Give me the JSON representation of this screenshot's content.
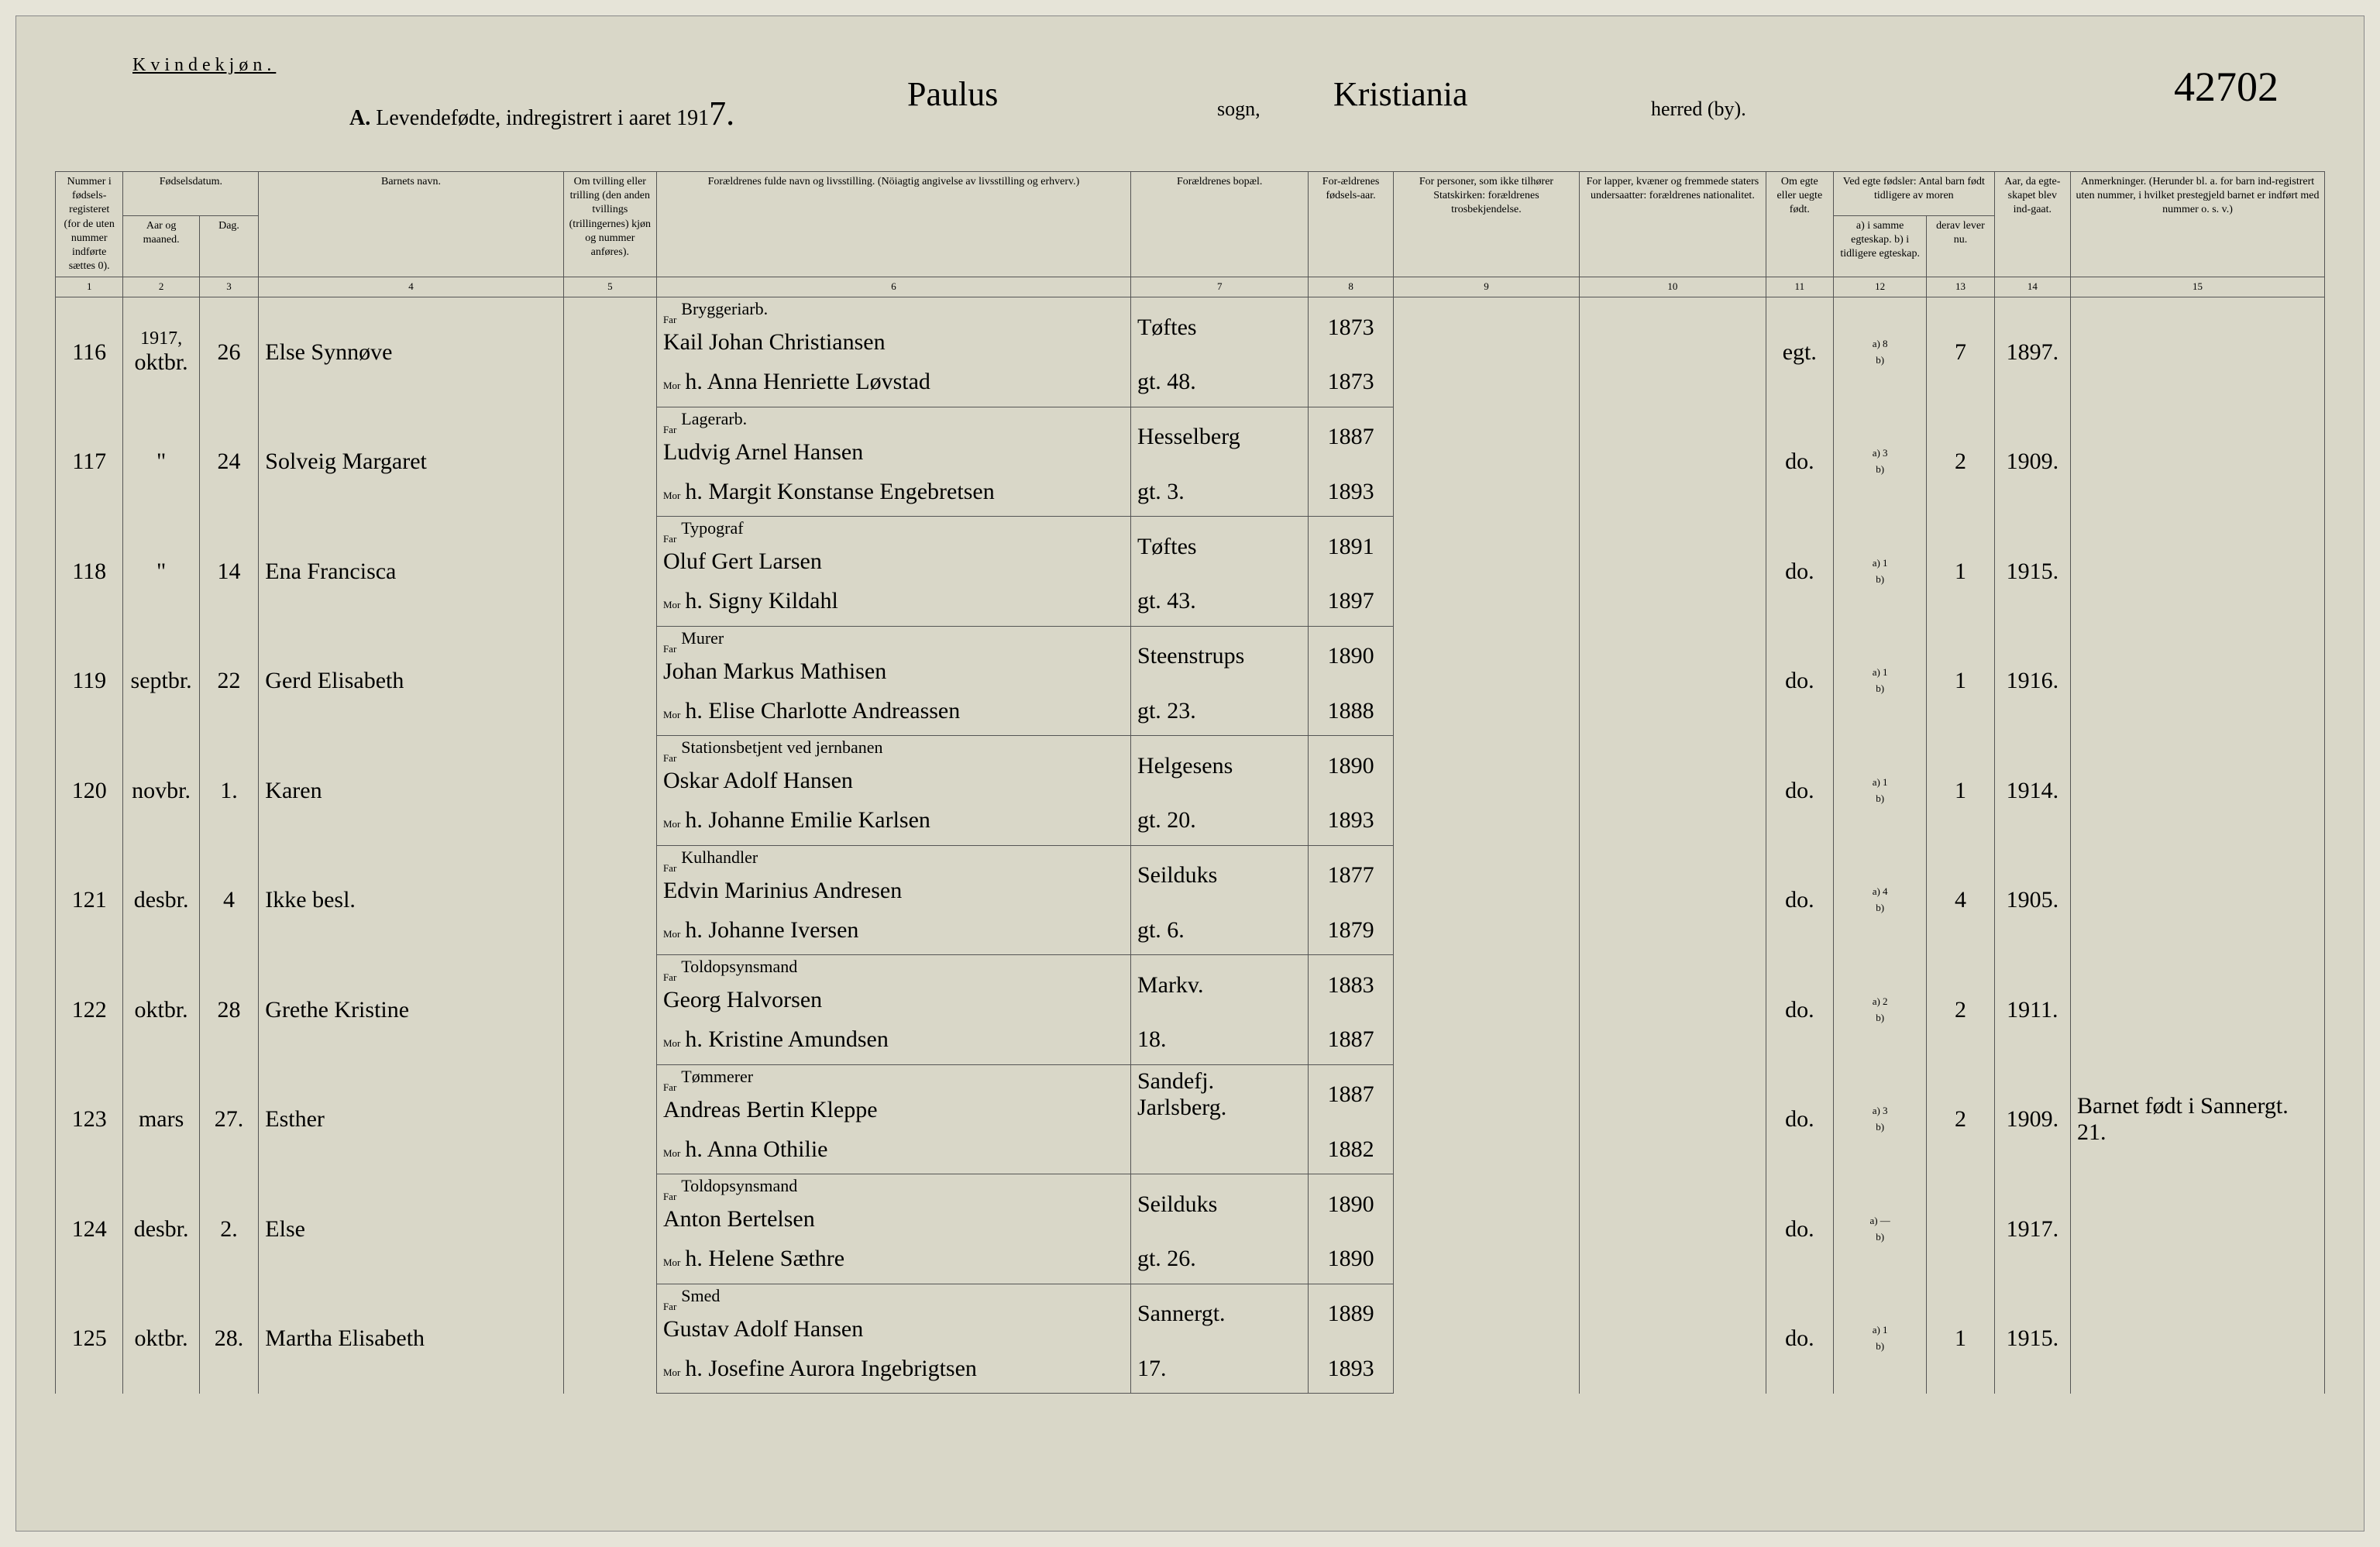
{
  "header": {
    "gender": "Kvindekjøn.",
    "title_prefix": "A.",
    "title_main": "Levendefødte, indregistrert i aaret 191",
    "title_year_digit": "7.",
    "parish": "Paulus",
    "sogn_label": "sogn,",
    "district": "Kristiania",
    "herred_label": "herred (by).",
    "page_number": "42702"
  },
  "columns": {
    "c1": "Nummer i fødsels-registeret (for de uten nummer indførte sættes 0).",
    "c2_group": "Fødselsdatum.",
    "c2": "Aar og maaned.",
    "c3": "Dag.",
    "c4": "Barnets navn.",
    "c5": "Om tvilling eller trilling (den anden tvillings (trillingernes) kjøn og nummer anføres).",
    "c6": "Forældrenes fulde navn og livsstilling. (Nöiagtig angivelse av livsstilling og erhverv.)",
    "c7": "Forældrenes bopæl.",
    "c8": "For-ældrenes fødsels-aar.",
    "c9": "For personer, som ikke tilhører Statskirken: forældrenes trosbekjendelse.",
    "c10": "For lapper, kvæner og fremmede staters undersaatter: forældrenes nationalitet.",
    "c11": "Om egte eller uegte født.",
    "c12_group": "Ved egte fødsler: Antal barn født tidligere av moren",
    "c12": "a) i samme egteskap.  b) i tidligere egteskap.",
    "c13": "derav lever nu.",
    "c14": "Aar, da egte-skapet blev ind-gaat.",
    "c15": "Anmerkninger. (Herunder bl. a. for barn ind-registrert uten nummer, i hvilket prestegjeld barnet er indført med nummer o. s. v.)",
    "far": "Far",
    "mor": "Mor",
    "a_lbl": "a)",
    "b_lbl": "b)"
  },
  "col_numbers": [
    "1",
    "2",
    "3",
    "4",
    "5",
    "6",
    "7",
    "8",
    "9",
    "10",
    "11",
    "12",
    "13",
    "14",
    "15"
  ],
  "rows": [
    {
      "num": "116",
      "month": "oktbr.",
      "year_note": "1917,",
      "day": "26",
      "name": "Else Synnøve",
      "far_occ": "Bryggeriarb.",
      "far": "Kail Johan Christiansen",
      "far_addr": "Tøftes",
      "far_year": "1873",
      "mor": "h. Anna Henriette Løvstad",
      "mor_addr": "gt. 48.",
      "mor_year": "1873",
      "egte": "egt.",
      "c12a": "8",
      "c13": "7",
      "c14": "1897."
    },
    {
      "num": "117",
      "month": "\"",
      "day": "24",
      "name": "Solveig Margaret",
      "far_occ": "Lagerarb.",
      "far": "Ludvig Arnel Hansen",
      "far_addr": "Hesselberg",
      "far_year": "1887",
      "mor": "h. Margit Konstanse Engebretsen",
      "mor_addr": "gt. 3.",
      "mor_year": "1893",
      "egte": "do.",
      "c12a": "3",
      "c13": "2",
      "c14": "1909."
    },
    {
      "num": "118",
      "month": "\"",
      "day": "14",
      "name": "Ena Francisca",
      "far_occ": "Typograf",
      "far": "Oluf Gert Larsen",
      "far_addr": "Tøftes",
      "far_year": "1891",
      "mor": "h. Signy Kildahl",
      "mor_addr": "gt. 43.",
      "mor_year": "1897",
      "egte": "do.",
      "c12a": "1",
      "c13": "1",
      "c14": "1915."
    },
    {
      "num": "119",
      "month": "septbr.",
      "day": "22",
      "name": "Gerd Elisabeth",
      "far_occ": "Murer",
      "far": "Johan Markus Mathisen",
      "far_addr": "Steenstrups",
      "far_year": "1890",
      "mor": "h. Elise Charlotte Andreassen",
      "mor_addr": "gt. 23.",
      "mor_year": "1888",
      "egte": "do.",
      "c12a": "1",
      "c13": "1",
      "c14": "1916."
    },
    {
      "num": "120",
      "month": "novbr.",
      "day": "1.",
      "name": "Karen",
      "far_occ": "Stationsbetjent ved jernbanen",
      "far": "Oskar Adolf Hansen",
      "far_addr": "Helgesens",
      "far_year": "1890",
      "mor": "h. Johanne Emilie Karlsen",
      "mor_addr": "gt. 20.",
      "mor_year": "1893",
      "egte": "do.",
      "c12a": "1",
      "c13": "1",
      "c14": "1914."
    },
    {
      "num": "121",
      "month": "desbr.",
      "day": "4",
      "name": "Ikke besl.",
      "far_occ": "Kulhandler",
      "far": "Edvin Marinius Andresen",
      "far_addr": "Seilduks",
      "far_year": "1877",
      "mor": "h. Johanne Iversen",
      "mor_addr": "gt. 6.",
      "mor_year": "1879",
      "egte": "do.",
      "c12a": "4",
      "c13": "4",
      "c14": "1905."
    },
    {
      "num": "122",
      "month": "oktbr.",
      "day": "28",
      "name": "Grethe Kristine",
      "far_occ": "Toldopsynsmand",
      "far": "Georg Halvorsen",
      "far_addr": "Markv.",
      "far_year": "1883",
      "mor": "h. Kristine Amundsen",
      "mor_addr": "18.",
      "mor_year": "1887",
      "egte": "do.",
      "c12a": "2",
      "c13": "2",
      "c14": "1911."
    },
    {
      "num": "123",
      "month": "mars",
      "day": "27.",
      "name": "Esther",
      "far_occ": "Tømmerer",
      "far": "Andreas Bertin Kleppe",
      "far_addr": "Sandefj. Jarlsberg.",
      "far_year": "1887",
      "mor": "h. Anna Othilie",
      "mor_addr": "",
      "mor_year": "1882",
      "egte": "do.",
      "c12a": "3",
      "c13": "2",
      "c14": "1909.",
      "remarks": "Barnet født i Sannergt. 21."
    },
    {
      "num": "124",
      "month": "desbr.",
      "day": "2.",
      "name": "Else",
      "far_occ": "Toldopsynsmand",
      "far": "Anton Bertelsen",
      "far_addr": "Seilduks",
      "far_year": "1890",
      "mor": "h. Helene Sæthre",
      "mor_addr": "gt. 26.",
      "mor_year": "1890",
      "egte": "do.",
      "c12a": "—",
      "c13": "",
      "c14": "1917."
    },
    {
      "num": "125",
      "month": "oktbr.",
      "day": "28.",
      "name": "Martha Elisabeth",
      "far_occ": "Smed",
      "far": "Gustav Adolf Hansen",
      "far_addr": "Sannergt.",
      "far_year": "1889",
      "mor": "h. Josefine Aurora Ingebrigtsen",
      "mor_addr": "17.",
      "mor_year": "1893",
      "egte": "do.",
      "c12a": "1",
      "c13": "1",
      "c14": "1915."
    }
  ],
  "col_widths": {
    "c1": 80,
    "c2": 90,
    "c3": 70,
    "c4": 360,
    "c5": 110,
    "c6": 560,
    "c7": 210,
    "c8": 100,
    "c9": 220,
    "c10": 220,
    "c11": 80,
    "c12": 110,
    "c13": 80,
    "c14": 90,
    "c15": 300
  }
}
